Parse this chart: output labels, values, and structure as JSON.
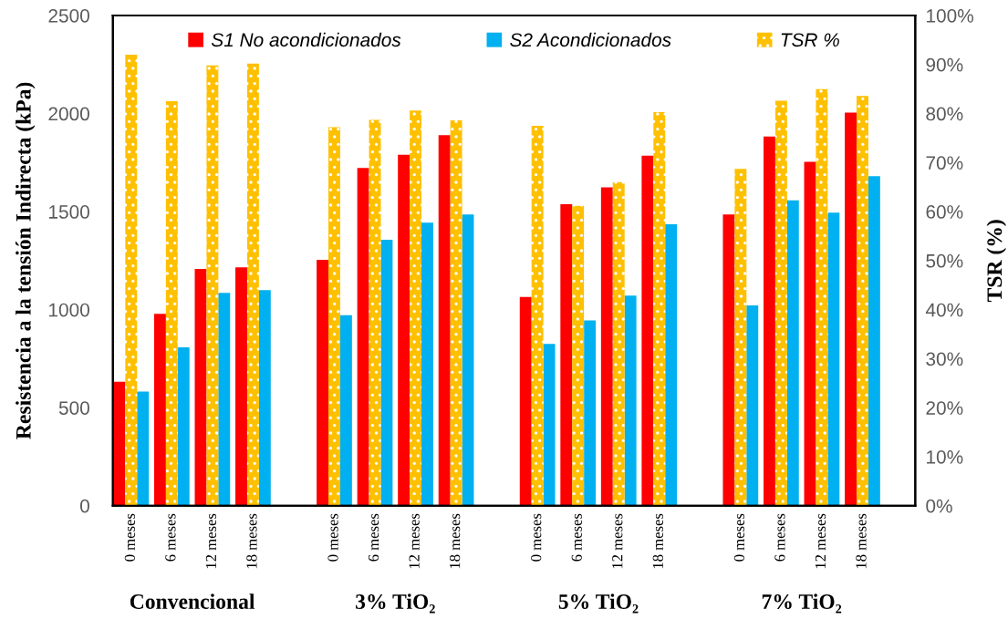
{
  "chart_data": {
    "type": "bar",
    "categories": [
      "0 meses",
      "6 meses",
      "12 meses",
      "18 meses",
      null,
      "0 meses",
      "6 meses",
      "12 meses",
      "18 meses",
      null,
      "0 meses",
      "6 meses",
      "12 meses",
      "18 meses",
      null,
      "0 meses",
      "6 meses",
      "12 meses",
      "18 meses"
    ],
    "series": [
      {
        "name": "S1 No acondicionados",
        "color": "#ff0000",
        "values": [
          632,
          979,
          1208,
          1216,
          null,
          1254,
          1722,
          1790,
          1890,
          null,
          1065,
          1538,
          1624,
          1785,
          null,
          1485,
          1883,
          1754,
          2005
        ]
      },
      {
        "name": "S2 Acondicionados",
        "color": "#00b0f0",
        "values": [
          582,
          808,
          1086,
          1100,
          null,
          971,
          1356,
          1443,
          1485,
          null,
          825,
          945,
          1072,
          1435,
          null,
          1021,
          1557,
          1495,
          1680
        ]
      },
      {
        "name": "TSR %",
        "color": "#ffc000",
        "axis": "y2",
        "values": [
          92.0,
          82.5,
          89.8,
          90.2,
          null,
          77.2,
          78.7,
          80.6,
          78.6,
          null,
          77.5,
          61.2,
          66.0,
          80.3,
          null,
          68.7,
          82.6,
          85.0,
          83.6
        ]
      }
    ],
    "ylabel": "Resistencia a la tensión Indirecta (kPa)",
    "y2label": "TSR (%)",
    "ylim": [
      0,
      2500
    ],
    "yticks": [
      0,
      500,
      1000,
      1500,
      2000,
      2500
    ],
    "y2lim": [
      0,
      100
    ],
    "y2ticks": [
      {
        "value": 0,
        "label": "0%"
      },
      {
        "value": 10,
        "label": "10%"
      },
      {
        "value": 20,
        "label": "20%"
      },
      {
        "value": 30,
        "label": "30%"
      },
      {
        "value": 40,
        "label": "40%"
      },
      {
        "value": 50,
        "label": "50%"
      },
      {
        "value": 60,
        "label": "60%"
      },
      {
        "value": 70,
        "label": "70%"
      },
      {
        "value": 80,
        "label": "80%"
      },
      {
        "value": 90,
        "label": "90%"
      },
      {
        "value": 100,
        "label": "100%"
      }
    ],
    "annotations": [
      "Convencional",
      "3% TiO₂",
      "5% TiO₂",
      "7% TiO₂"
    ],
    "legend": "top",
    "grid": false
  }
}
